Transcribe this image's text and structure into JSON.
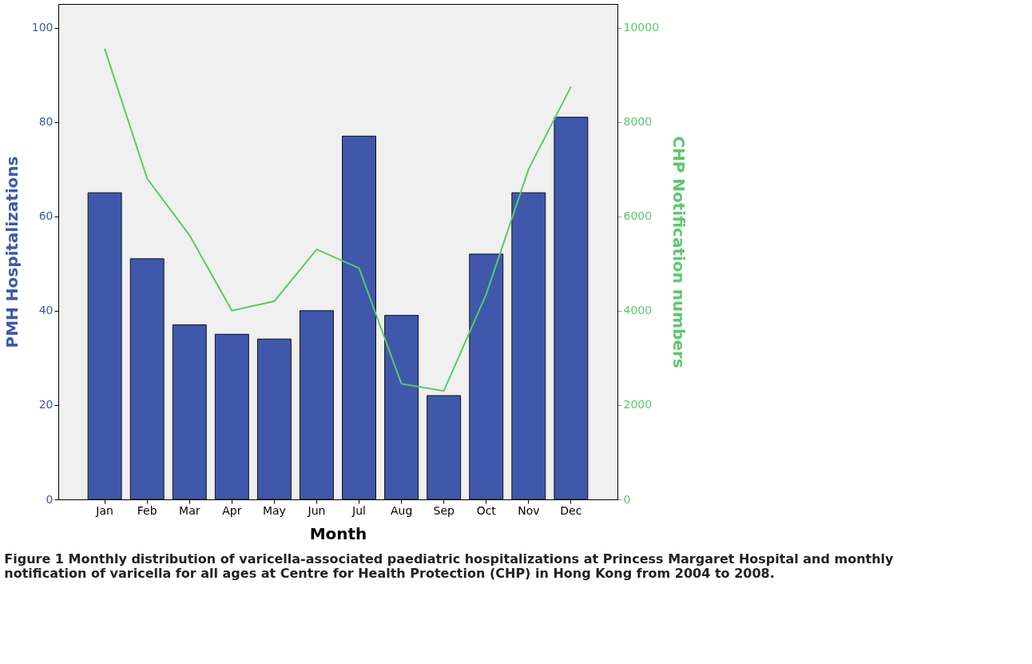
{
  "chart_data": {
    "type": "bar",
    "xlabel": "Month",
    "ylabel": "PMH Hospitalizations",
    "y2label": "CHP Notification numbers",
    "categories": [
      "Jan",
      "Feb",
      "Mar",
      "Apr",
      "May",
      "Jun",
      "Jul",
      "Aug",
      "Sep",
      "Oct",
      "Nov",
      "Dec"
    ],
    "series": [
      {
        "color": "#3f58ab",
        "values": [
          65,
          51,
          37,
          35,
          34,
          40,
          77,
          39,
          22,
          52,
          65,
          81
        ]
      },
      {
        "type": "line",
        "axis": "y2",
        "color": "#5cc86a",
        "values": [
          9550,
          6800,
          5600,
          4000,
          4200,
          5300,
          4900,
          2450,
          2300,
          4350,
          7000,
          8750
        ]
      }
    ],
    "ylim": [
      0,
      105
    ],
    "yticks": [
      0,
      20,
      40,
      60,
      80,
      100
    ],
    "y2lim": [
      0,
      10500
    ],
    "y2ticks": [
      0,
      2000,
      4000,
      6000,
      8000,
      10000
    ],
    "grid": false,
    "marker": "none",
    "line_style": "solid",
    "annotations": [
      "Figure 1 Monthly distribution of varicella-associated paediatric hospitalizations at Princess Margaret Hospital and monthly notification of varicella for all ages at Centre for Health Protection (CHP) in Hong Kong from 2004 to 2008."
    ]
  }
}
